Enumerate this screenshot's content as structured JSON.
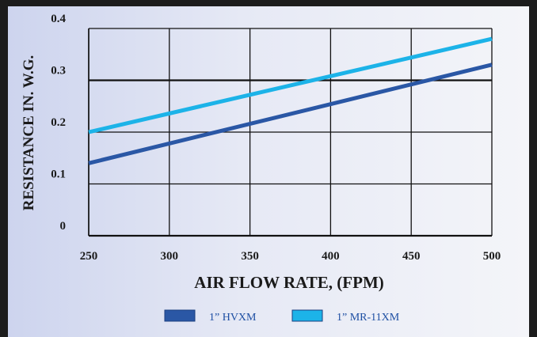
{
  "chart_data": {
    "type": "line",
    "title": "",
    "xlabel": "AIR FLOW RATE, (FPM)",
    "ylabel": "RESISTANCE IN. W.G.",
    "x": [
      250,
      500
    ],
    "xticks": [
      250,
      300,
      350,
      400,
      450,
      500
    ],
    "yticks": [
      0,
      0.1,
      0.2,
      0.3,
      0.4
    ],
    "ytick_labels": [
      "0",
      "0.1",
      "0.2",
      "0.3",
      "0.4"
    ],
    "xlim": [
      250,
      500
    ],
    "ylim": [
      0,
      0.4
    ],
    "grid": true,
    "legend_position": "bottom",
    "series": [
      {
        "name": "1” HVXM",
        "color": "#2a57a5",
        "x": [
          250,
          500
        ],
        "values": [
          0.14,
          0.33
        ]
      },
      {
        "name": "1” MR-11XM",
        "color": "#1cb3e8",
        "x": [
          250,
          500
        ],
        "values": [
          0.2,
          0.38
        ]
      }
    ]
  }
}
